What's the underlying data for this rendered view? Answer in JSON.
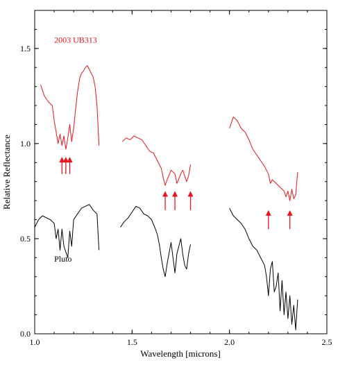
{
  "chart_data": {
    "type": "line",
    "title": "",
    "xlabel": "Wavelength [microns]",
    "ylabel": "Relative Reflectance",
    "xlim": [
      1.0,
      2.5
    ],
    "ylim": [
      0.0,
      1.7
    ],
    "x_ticks": [
      1.0,
      1.5,
      2.0,
      2.5
    ],
    "x_tick_labels": [
      "1.0",
      "1.5",
      "2.0",
      "2.5"
    ],
    "y_ticks": [
      0.0,
      0.5,
      1.0,
      1.5
    ],
    "y_tick_labels": [
      "0.0",
      "0.5",
      "1.0",
      "1.5"
    ],
    "grid": false,
    "legend": "none",
    "colors": {
      "series_1": "#e8141e",
      "series_2": "#000000",
      "axis": "#000000"
    },
    "series": [
      {
        "name": "2003 UB313",
        "label_at": [
          1.1,
          1.53
        ],
        "segments": [
          {
            "x": [
              1.03,
              1.05,
              1.07,
              1.09,
              1.1,
              1.11,
              1.12,
              1.13,
              1.14,
              1.15,
              1.16,
              1.17,
              1.18,
              1.19,
              1.2,
              1.21,
              1.22,
              1.23,
              1.24,
              1.25,
              1.26,
              1.27,
              1.28,
              1.29,
              1.3,
              1.31,
              1.32,
              1.33
            ],
            "y": [
              1.31,
              1.25,
              1.22,
              1.2,
              1.12,
              1.06,
              1.0,
              1.05,
              0.99,
              1.04,
              0.97,
              1.03,
              1.1,
              1.01,
              1.08,
              1.18,
              1.27,
              1.34,
              1.37,
              1.38,
              1.4,
              1.41,
              1.39,
              1.37,
              1.35,
              1.3,
              1.2,
              0.99
            ]
          },
          {
            "x": [
              1.45,
              1.47,
              1.49,
              1.51,
              1.53,
              1.55,
              1.57,
              1.59,
              1.61,
              1.63,
              1.65,
              1.66,
              1.67,
              1.68,
              1.7,
              1.72,
              1.73,
              1.75,
              1.76,
              1.78,
              1.79,
              1.8
            ],
            "y": [
              1.01,
              1.03,
              1.02,
              1.04,
              1.03,
              1.02,
              0.99,
              0.96,
              0.95,
              0.91,
              0.87,
              0.82,
              0.78,
              0.81,
              0.86,
              0.84,
              0.79,
              0.84,
              0.86,
              0.8,
              0.83,
              0.89
            ]
          },
          {
            "x": [
              2.0,
              2.02,
              2.04,
              2.06,
              2.08,
              2.1,
              2.12,
              2.14,
              2.16,
              2.18,
              2.2,
              2.21,
              2.22,
              2.24,
              2.26,
              2.28,
              2.29,
              2.3,
              2.31,
              2.32,
              2.33,
              2.34,
              2.35
            ],
            "y": [
              1.08,
              1.14,
              1.12,
              1.08,
              1.06,
              1.02,
              0.97,
              0.94,
              0.91,
              0.88,
              0.84,
              0.79,
              0.81,
              0.79,
              0.77,
              0.75,
              0.72,
              0.75,
              0.7,
              0.76,
              0.71,
              0.73,
              0.85
            ]
          }
        ]
      },
      {
        "name": "Pluto",
        "label_at": [
          1.1,
          0.38
        ],
        "segments": [
          {
            "x": [
              1.0,
              1.02,
              1.04,
              1.06,
              1.08,
              1.1,
              1.11,
              1.12,
              1.13,
              1.14,
              1.15,
              1.16,
              1.17,
              1.18,
              1.19,
              1.2,
              1.22,
              1.24,
              1.26,
              1.28,
              1.3,
              1.32,
              1.33
            ],
            "y": [
              0.56,
              0.6,
              0.62,
              0.61,
              0.6,
              0.58,
              0.5,
              0.55,
              0.44,
              0.55,
              0.46,
              0.43,
              0.4,
              0.54,
              0.46,
              0.6,
              0.63,
              0.66,
              0.67,
              0.68,
              0.65,
              0.63,
              0.44
            ]
          },
          {
            "x": [
              1.44,
              1.46,
              1.48,
              1.5,
              1.52,
              1.54,
              1.56,
              1.58,
              1.6,
              1.62,
              1.63,
              1.64,
              1.65,
              1.66,
              1.67,
              1.68,
              1.7,
              1.71,
              1.72,
              1.73,
              1.75,
              1.76,
              1.77,
              1.78,
              1.79,
              1.8
            ],
            "y": [
              0.56,
              0.59,
              0.61,
              0.64,
              0.67,
              0.66,
              0.63,
              0.62,
              0.6,
              0.55,
              0.52,
              0.47,
              0.4,
              0.34,
              0.3,
              0.37,
              0.48,
              0.4,
              0.32,
              0.42,
              0.5,
              0.42,
              0.36,
              0.34,
              0.42,
              0.47
            ]
          },
          {
            "x": [
              2.0,
              2.02,
              2.04,
              2.06,
              2.08,
              2.1,
              2.12,
              2.14,
              2.16,
              2.18,
              2.19,
              2.2,
              2.21,
              2.22,
              2.23,
              2.24,
              2.25,
              2.26,
              2.27,
              2.28,
              2.29,
              2.3,
              2.31,
              2.32,
              2.33,
              2.34,
              2.35
            ],
            "y": [
              0.66,
              0.62,
              0.6,
              0.58,
              0.55,
              0.5,
              0.46,
              0.44,
              0.4,
              0.36,
              0.3,
              0.2,
              0.34,
              0.38,
              0.22,
              0.25,
              0.32,
              0.12,
              0.28,
              0.1,
              0.22,
              0.08,
              0.2,
              0.05,
              0.15,
              0.02,
              0.18
            ]
          }
        ]
      }
    ],
    "arrows": {
      "color": "#e8141e",
      "positions": [
        {
          "x": 1.14,
          "y_tip": 0.93,
          "y_base": 0.84
        },
        {
          "x": 1.16,
          "y_tip": 0.93,
          "y_base": 0.84
        },
        {
          "x": 1.18,
          "y_tip": 0.93,
          "y_base": 0.84
        },
        {
          "x": 1.67,
          "y_tip": 0.75,
          "y_base": 0.65
        },
        {
          "x": 1.72,
          "y_tip": 0.75,
          "y_base": 0.65
        },
        {
          "x": 1.8,
          "y_tip": 0.75,
          "y_base": 0.65
        },
        {
          "x": 2.2,
          "y_tip": 0.65,
          "y_base": 0.55
        },
        {
          "x": 2.31,
          "y_tip": 0.65,
          "y_base": 0.55
        }
      ]
    }
  }
}
